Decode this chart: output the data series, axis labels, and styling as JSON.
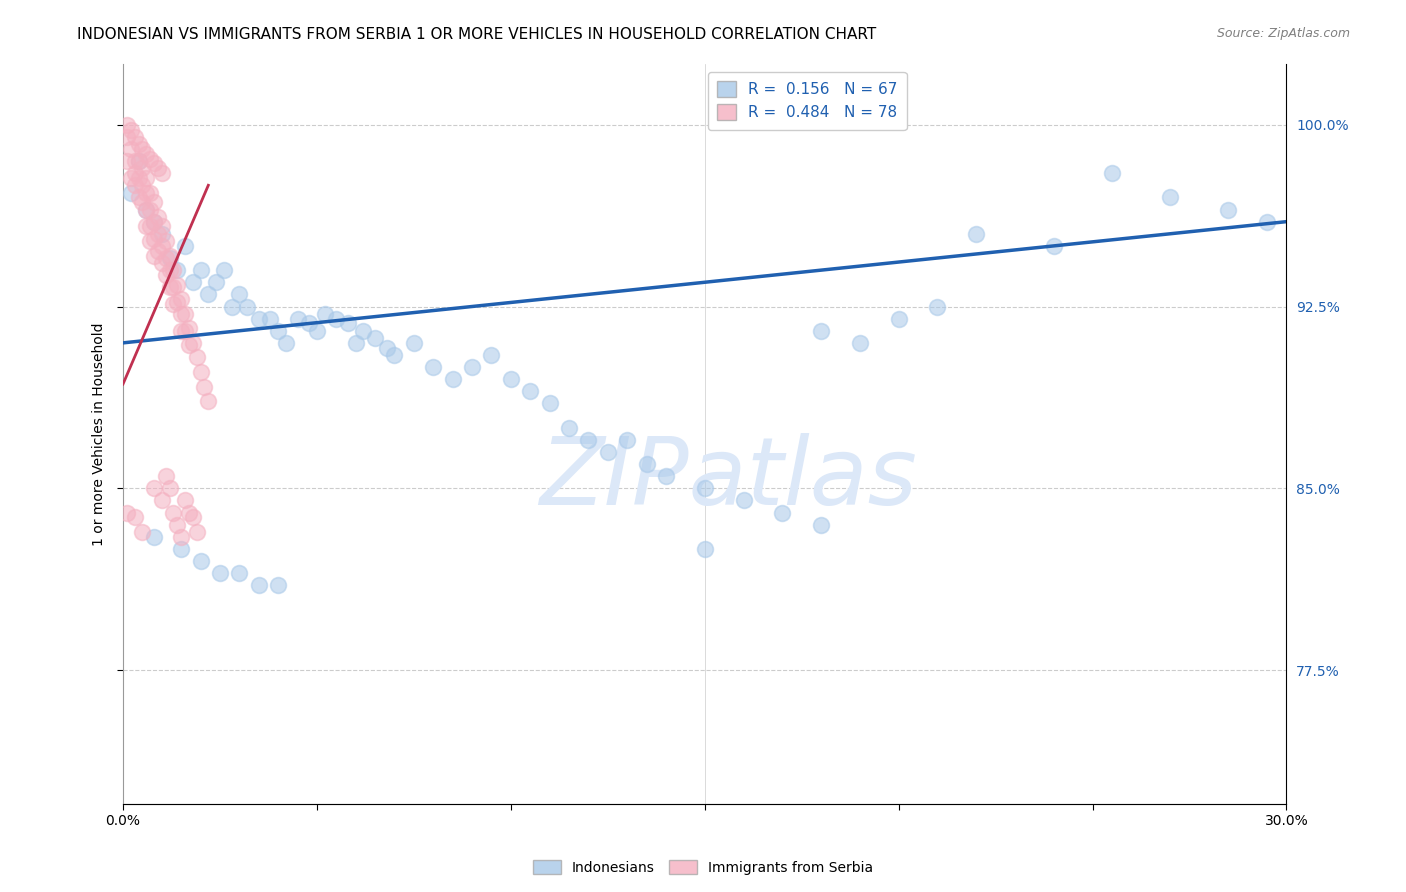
{
  "title": "INDONESIAN VS IMMIGRANTS FROM SERBIA 1 OR MORE VEHICLES IN HOUSEHOLD CORRELATION CHART",
  "source": "Source: ZipAtlas.com",
  "ylabel": "1 or more Vehicles in Household",
  "xlim": [
    0.0,
    0.3
  ],
  "ylim": [
    0.72,
    1.025
  ],
  "yticks": [
    0.775,
    0.85,
    0.925,
    1.0
  ],
  "ytick_labels": [
    "77.5%",
    "85.0%",
    "92.5%",
    "100.0%"
  ],
  "xticks": [
    0.0,
    0.05,
    0.1,
    0.15,
    0.2,
    0.25,
    0.3
  ],
  "legend_r1": "R =  0.156",
  "legend_n1": "N = 67",
  "legend_r2": "R =  0.484",
  "legend_n2": "N = 78",
  "blue_color": "#a8c8e8",
  "pink_color": "#f4b0c0",
  "blue_line_color": "#2060b0",
  "pink_line_color": "#c03050",
  "watermark": "ZIPatlas",
  "watermark_color": "#dce8f8",
  "blue_scatter_x": [
    0.002,
    0.004,
    0.006,
    0.008,
    0.01,
    0.012,
    0.014,
    0.016,
    0.018,
    0.02,
    0.022,
    0.024,
    0.026,
    0.028,
    0.03,
    0.032,
    0.035,
    0.038,
    0.04,
    0.042,
    0.045,
    0.048,
    0.05,
    0.052,
    0.055,
    0.058,
    0.06,
    0.062,
    0.065,
    0.068,
    0.07,
    0.075,
    0.08,
    0.085,
    0.09,
    0.095,
    0.1,
    0.105,
    0.11,
    0.115,
    0.12,
    0.125,
    0.13,
    0.135,
    0.14,
    0.15,
    0.16,
    0.17,
    0.18,
    0.19,
    0.2,
    0.21,
    0.22,
    0.24,
    0.255,
    0.27,
    0.285,
    0.295,
    0.008,
    0.015,
    0.02,
    0.025,
    0.03,
    0.035,
    0.04,
    0.15,
    0.18
  ],
  "blue_scatter_y": [
    0.972,
    0.985,
    0.965,
    0.96,
    0.955,
    0.945,
    0.94,
    0.95,
    0.935,
    0.94,
    0.93,
    0.935,
    0.94,
    0.925,
    0.93,
    0.925,
    0.92,
    0.92,
    0.915,
    0.91,
    0.92,
    0.918,
    0.915,
    0.922,
    0.92,
    0.918,
    0.91,
    0.915,
    0.912,
    0.908,
    0.905,
    0.91,
    0.9,
    0.895,
    0.9,
    0.905,
    0.895,
    0.89,
    0.885,
    0.875,
    0.87,
    0.865,
    0.87,
    0.86,
    0.855,
    0.85,
    0.845,
    0.84,
    0.835,
    0.91,
    0.92,
    0.925,
    0.955,
    0.95,
    0.98,
    0.97,
    0.965,
    0.96,
    0.83,
    0.825,
    0.82,
    0.815,
    0.815,
    0.81,
    0.81,
    0.825,
    0.915
  ],
  "pink_scatter_x": [
    0.001,
    0.001,
    0.002,
    0.002,
    0.003,
    0.003,
    0.003,
    0.004,
    0.004,
    0.004,
    0.005,
    0.005,
    0.005,
    0.006,
    0.006,
    0.006,
    0.006,
    0.007,
    0.007,
    0.007,
    0.007,
    0.008,
    0.008,
    0.008,
    0.008,
    0.009,
    0.009,
    0.009,
    0.01,
    0.01,
    0.01,
    0.011,
    0.011,
    0.011,
    0.012,
    0.012,
    0.012,
    0.013,
    0.013,
    0.013,
    0.014,
    0.014,
    0.015,
    0.015,
    0.015,
    0.016,
    0.016,
    0.017,
    0.017,
    0.018,
    0.019,
    0.02,
    0.021,
    0.022,
    0.001,
    0.002,
    0.003,
    0.004,
    0.005,
    0.006,
    0.007,
    0.008,
    0.009,
    0.01,
    0.011,
    0.012,
    0.013,
    0.014,
    0.015,
    0.016,
    0.017,
    0.018,
    0.019,
    0.001,
    0.003,
    0.005,
    0.008,
    0.01
  ],
  "pink_scatter_y": [
    0.995,
    0.985,
    0.99,
    0.978,
    0.985,
    0.98,
    0.975,
    0.985,
    0.978,
    0.97,
    0.982,
    0.975,
    0.968,
    0.978,
    0.972,
    0.965,
    0.958,
    0.972,
    0.965,
    0.958,
    0.952,
    0.968,
    0.96,
    0.953,
    0.946,
    0.962,
    0.955,
    0.948,
    0.958,
    0.95,
    0.943,
    0.952,
    0.945,
    0.938,
    0.946,
    0.94,
    0.933,
    0.94,
    0.933,
    0.926,
    0.934,
    0.927,
    0.928,
    0.922,
    0.915,
    0.922,
    0.915,
    0.916,
    0.909,
    0.91,
    0.904,
    0.898,
    0.892,
    0.886,
    1.0,
    0.998,
    0.995,
    0.992,
    0.99,
    0.988,
    0.986,
    0.984,
    0.982,
    0.98,
    0.855,
    0.85,
    0.84,
    0.835,
    0.83,
    0.845,
    0.84,
    0.838,
    0.832,
    0.84,
    0.838,
    0.832,
    0.85,
    0.845
  ],
  "blue_trendline_x": [
    0.0,
    0.3
  ],
  "blue_trendline_y": [
    0.91,
    0.96
  ],
  "pink_trendline_x": [
    0.0,
    0.022
  ],
  "pink_trendline_y": [
    0.893,
    0.975
  ],
  "title_fontsize": 11,
  "axis_label_fontsize": 10,
  "tick_fontsize": 10,
  "legend_fontsize": 11,
  "source_fontsize": 9
}
